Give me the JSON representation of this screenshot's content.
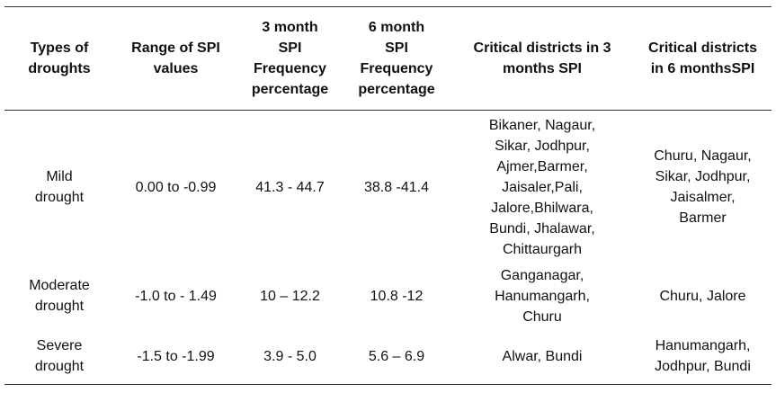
{
  "table": {
    "headers": [
      [
        "Types of",
        "droughts"
      ],
      [
        "Range of SPI",
        "values"
      ],
      [
        "3 month",
        "SPI",
        "Frequency",
        "percentage"
      ],
      [
        "6 month",
        "SPI",
        "Frequency",
        "percentage"
      ],
      [
        "Critical districts in 3",
        "months SPI"
      ],
      [
        "Critical districts",
        "in 6 monthsSPI"
      ]
    ],
    "rows": [
      {
        "type": [
          "Mild",
          "drought"
        ],
        "range": "0.00 to -0.99",
        "freq3": "41.3 - 44.7",
        "freq6": "38.8 -41.4",
        "critical3": [
          "Bikaner, Nagaur,",
          "Sikar, Jodhpur,",
          "Ajmer,Barmer,",
          "Jaisaler,Pali,",
          "Jalore,Bhilwara,",
          "Bundi, Jhalawar,",
          "Chittaurgarh"
        ],
        "critical6": [
          "Churu, Nagaur,",
          "Sikar, Jodhpur,",
          "Jaisalmer,",
          "Barmer"
        ]
      },
      {
        "type": [
          "Moderate",
          "drought"
        ],
        "range": "-1.0 to - 1.49",
        "freq3": "10 – 12.2",
        "freq6": "10.8 -12",
        "critical3": [
          "Ganganagar,",
          "Hanumangarh,",
          "Churu"
        ],
        "critical6": [
          "Churu, Jalore"
        ]
      },
      {
        "type": [
          "Severe",
          "drought"
        ],
        "range": "-1.5 to -1.99",
        "freq3": "3.9 - 5.0",
        "freq6": "5.6 – 6.9",
        "critical3": [
          "Alwar, Bundi"
        ],
        "critical6": [
          "Hanumangarh,",
          "Jodhpur, Bundi"
        ]
      }
    ]
  }
}
